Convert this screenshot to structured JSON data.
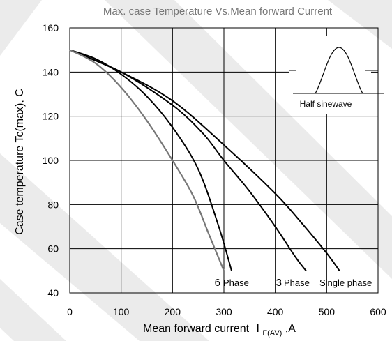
{
  "chart_data": {
    "type": "line",
    "title": "Max. case Temperature Vs.Mean forward Current",
    "xlabel": "Mean forward current",
    "xlabel_symbol": "I",
    "xlabel_subscript": "F(AV)",
    "xlabel_unit": ",A",
    "ylabel": "Case temperature  Tc(max), C",
    "xlim": [
      0,
      600
    ],
    "ylim": [
      40,
      160
    ],
    "xticks": [
      0,
      100,
      200,
      300,
      400,
      500,
      600
    ],
    "yticks": [
      40,
      60,
      80,
      100,
      120,
      140,
      160
    ],
    "grid": true,
    "inset_label": "Half sinewave",
    "series": [
      {
        "name": "Phase",
        "number": "6",
        "color": "#000000",
        "x": [
          0,
          50,
          100,
          150,
          200,
          250,
          290,
          315
        ],
        "y": [
          150,
          146,
          139,
          129,
          115,
          96,
          70,
          50
        ]
      },
      {
        "name": "Phase",
        "number": "3",
        "color": "#000000",
        "x": [
          0,
          100,
          200,
          260,
          300,
          350,
          400,
          440,
          460
        ],
        "y": [
          150,
          140,
          125,
          112,
          100,
          86,
          70,
          56,
          50
        ]
      },
      {
        "name": "Single phase",
        "number": "",
        "color": "#000000",
        "x": [
          0,
          100,
          200,
          300,
          400,
          450,
          500,
          525
        ],
        "y": [
          150,
          140,
          127,
          107,
          85,
          72,
          58,
          50
        ]
      },
      {
        "name": "",
        "number": "",
        "color": "#777777",
        "x": [
          0,
          50,
          100,
          150,
          200,
          240,
          270,
          300
        ],
        "y": [
          150,
          144,
          133,
          118,
          100,
          84,
          67,
          50
        ]
      }
    ]
  }
}
